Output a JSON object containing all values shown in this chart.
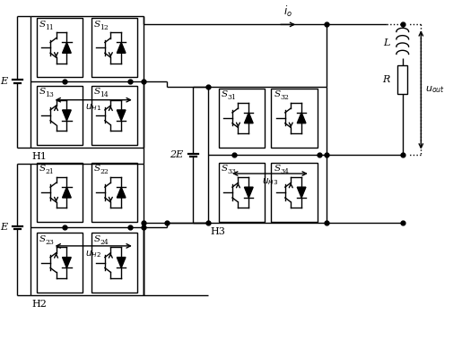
{
  "bg_color": "#ffffff",
  "line_color": "#000000",
  "figsize": [
    5.06,
    3.89
  ],
  "dpi": 100,
  "lw": 1.0,
  "xlim": [
    0,
    10.12
  ],
  "ylim": [
    0,
    7.78
  ]
}
